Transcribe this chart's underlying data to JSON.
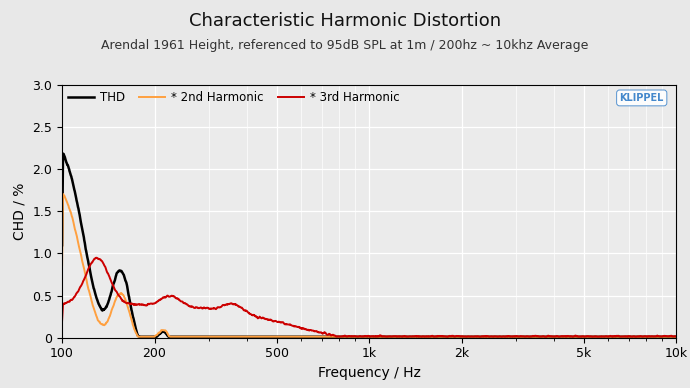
{
  "title": "Characteristic Harmonic Distortion",
  "subtitle": "Arendal 1961 Height, referenced to 95dB SPL at 1m / 200hz ~ 10khz Average",
  "xlabel": "Frequency / Hz",
  "ylabel": "CHD / %",
  "xlim": [
    100,
    10000
  ],
  "ylim": [
    0,
    3.0
  ],
  "yticks": [
    0,
    0.5,
    1.0,
    1.5,
    2.0,
    2.5,
    3.0
  ],
  "xticks": [
    100,
    200,
    500,
    1000,
    2000,
    5000,
    10000
  ],
  "xticklabels": [
    "100",
    "200",
    "500",
    "1k",
    "2k",
    "5k",
    "10k"
  ],
  "legend": [
    {
      "label": "THD",
      "color": "#000000",
      "lw": 1.8
    },
    {
      "label": "* 2nd Harmonic",
      "color": "#FFA040",
      "lw": 1.4
    },
    {
      "label": "* 3rd Harmonic",
      "color": "#CC0000",
      "lw": 1.4
    }
  ],
  "background_color": "#e8e8e8",
  "plot_bg_color": "#ebebeb",
  "grid_color": "#ffffff",
  "title_fontsize": 13,
  "subtitle_fontsize": 9,
  "klippel_text": "KLIPPEL",
  "klippel_color": "#4488cc"
}
